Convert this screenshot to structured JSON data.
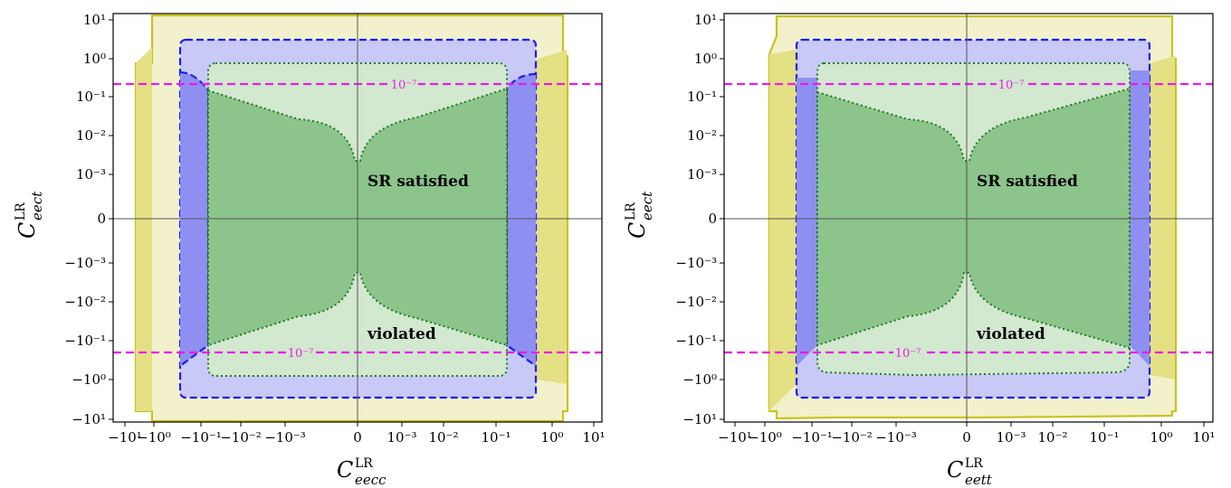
{
  "chart_data": [
    {
      "type": "contour",
      "xlabel": "C_eecc^LR",
      "xlabel_main": "C",
      "xlabel_sup": "LR",
      "xlabel_sub": "eecc",
      "ylabel_main": "C",
      "ylabel_sup": "LR",
      "ylabel_sub": "eect",
      "x_scale": "symlog",
      "y_scale": "symlog",
      "x_ticks": [
        "−10¹",
        "−10⁰",
        "−10⁻¹",
        "−10⁻²",
        "−10⁻³",
        "0",
        "10⁻³",
        "10⁻²",
        "10⁻¹",
        "10⁰",
        "10¹"
      ],
      "y_ticks": [
        "10¹",
        "10⁰",
        "10⁻¹",
        "10⁻²",
        "10⁻³",
        "0",
        "−10⁻³",
        "−10⁻²",
        "−10⁻¹",
        "−10⁰",
        "−10¹"
      ],
      "annotations": [
        "SR satisfied",
        "violated"
      ],
      "level_label": "10⁻⁷",
      "regions": {
        "yellow_x": [
          -2.0,
          1.9
        ],
        "yellow_y": [
          -12,
          12
        ],
        "blue_x": [
          -0.55,
          0.55
        ],
        "blue_y": [
          -3.5,
          3.2
        ],
        "lightgreen_x": [
          -0.12,
          0.12
        ],
        "lightgreen_y": [
          -0.6,
          0.6
        ],
        "darkgreen_x": [
          -0.12,
          0.12
        ]
      },
      "hline_values": [
        0.2,
        -0.2
      ],
      "colors": {
        "yellow": "#c8c31e",
        "blue": "#1e1ee6",
        "green": "#1e7a1e",
        "magenta": "#e61ee6"
      }
    },
    {
      "type": "contour",
      "xlabel": "C_eett^LR",
      "xlabel_main": "C",
      "xlabel_sup": "LR",
      "xlabel_sub": "eett",
      "ylabel_main": "C",
      "ylabel_sup": "LR",
      "ylabel_sub": "eect",
      "x_scale": "symlog",
      "y_scale": "symlog",
      "x_ticks": [
        "−10¹",
        "−10⁰",
        "−10⁻¹",
        "−10⁻²",
        "−10⁻³",
        "0",
        "10⁻³",
        "10⁻²",
        "10⁻¹",
        "10⁰",
        "10¹"
      ],
      "y_ticks": [
        "10¹",
        "10⁰",
        "10⁻¹",
        "10⁻²",
        "10⁻³",
        "0",
        "−10⁻³",
        "−10⁻²",
        "−10⁻¹",
        "−10⁰",
        "−10¹"
      ],
      "annotations": [
        "SR satisfied",
        "violated"
      ],
      "level_label": "10⁻⁷",
      "regions": {
        "yellow_x": [
          -2.0,
          1.9
        ],
        "yellow_y": [
          -12,
          12
        ],
        "blue_x": [
          -0.55,
          0.55
        ],
        "blue_y": [
          -3.5,
          3.2
        ],
        "lightgreen_x": [
          -0.12,
          0.12
        ],
        "lightgreen_y": [
          -0.6,
          0.6
        ],
        "darkgreen_x": [
          -0.12,
          0.12
        ]
      },
      "hline_values": [
        0.2,
        -0.2
      ],
      "colors": {
        "yellow": "#c8c31e",
        "blue": "#1e1ee6",
        "green": "#1e7a1e",
        "magenta": "#e61ee6"
      }
    }
  ]
}
